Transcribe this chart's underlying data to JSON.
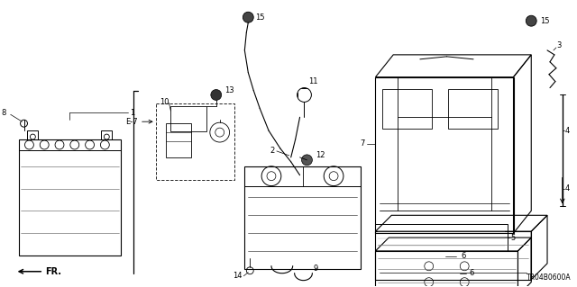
{
  "bg_color": "#ffffff",
  "line_color": "#000000",
  "diagram_code": "TR04B0600A",
  "fig_w": 6.4,
  "fig_h": 3.19,
  "dpi": 100
}
